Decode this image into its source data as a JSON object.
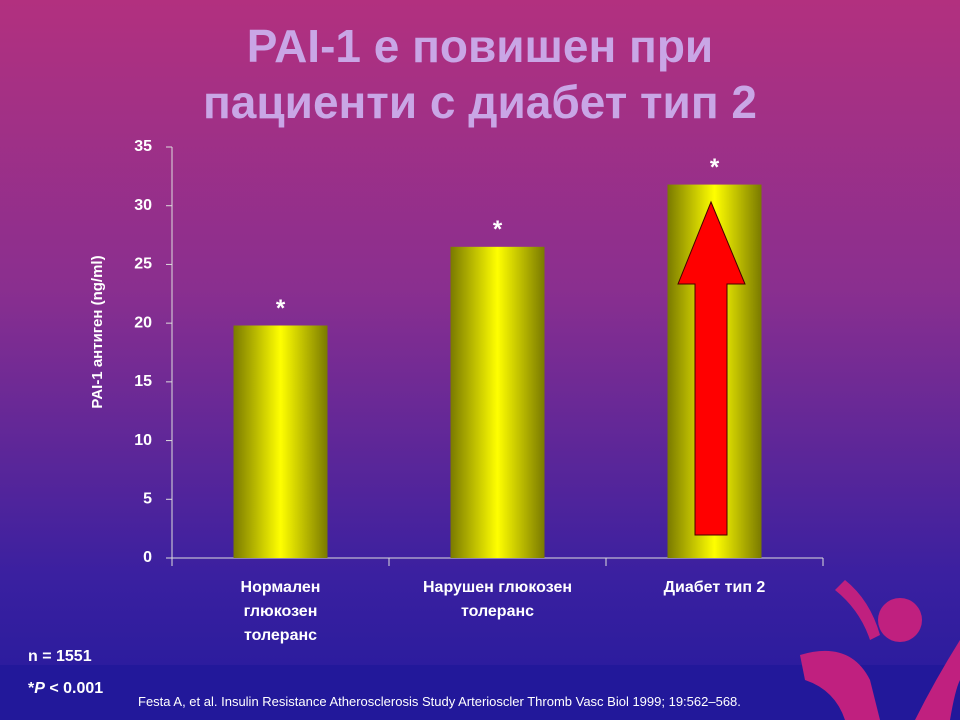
{
  "chart_data": {
    "type": "bar",
    "title": [
      "PAI-1 е повишен при",
      "пациенти с диабет тип 2"
    ],
    "y_label": "PAI-1 антиген (ng/ml)",
    "categories": [
      "Нормален глюкозен толеранс",
      "Нарушен глюкозен толеранс",
      "Диабет тип 2"
    ],
    "values": [
      19.8,
      26.5,
      31.8
    ],
    "annotations": [
      "*",
      "*",
      "*"
    ],
    "color": "#ffff00",
    "ylim": [
      0,
      35
    ],
    "yticks": [
      0,
      5,
      10,
      15,
      20,
      25,
      30,
      35
    ]
  },
  "footnotes": {
    "n": "n = 1551",
    "p": [
      "*",
      "P",
      " < 0.001"
    ],
    "citation": "Festa A, et al. Insulin Resistance Atherosclerosis Study Arterioscler Thromb Vasc Biol 1999; 19:562–568."
  }
}
